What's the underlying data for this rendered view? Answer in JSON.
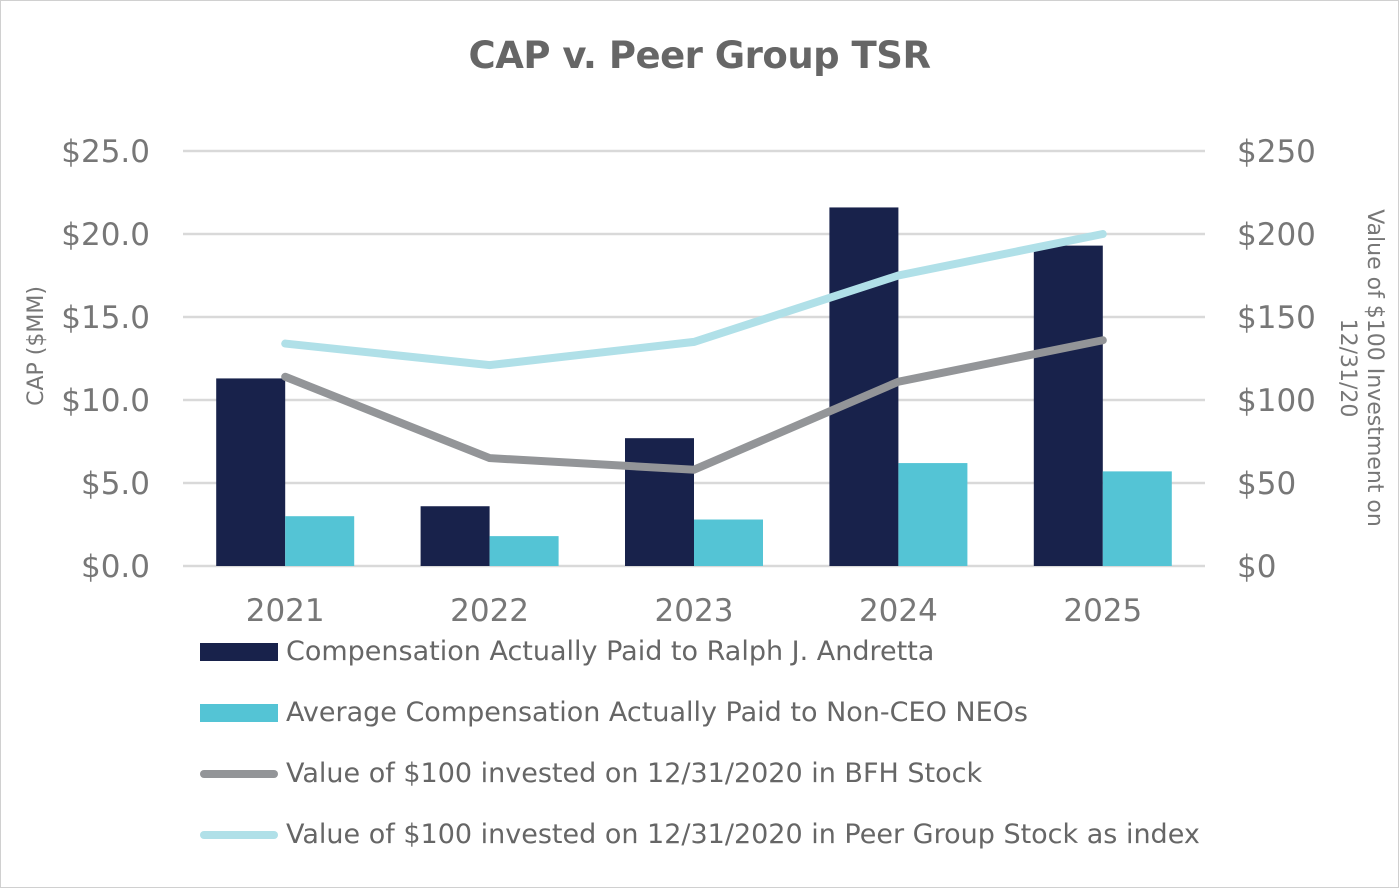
{
  "chart_data": {
    "type": "bar",
    "title": "CAP v. Peer Group TSR",
    "categories": [
      "2021",
      "2022",
      "2023",
      "2024",
      "2025"
    ],
    "ylabel": "CAP ($MM)",
    "y2label": "Value of $100 Investment on 12/31/20",
    "ylim": [
      0,
      25
    ],
    "y2lim": [
      0,
      250
    ],
    "yticks": [
      "$0.0",
      "$5.0",
      "$10.0",
      "$15.0",
      "$20.0",
      "$25.0"
    ],
    "y2ticks": [
      "$0",
      "$50",
      "$100",
      "$150",
      "$200",
      "$250"
    ],
    "grid": true,
    "legend_position": "bottom",
    "series": [
      {
        "name": "Compensation Actually Paid to Ralph J. Andretta",
        "type": "bar",
        "axis": "left",
        "color": "#18224b",
        "values": [
          11.3,
          3.6,
          7.7,
          21.6,
          19.3
        ]
      },
      {
        "name": "Average Compensation Actually Paid to Non-CEO NEOs",
        "type": "bar",
        "axis": "left",
        "color": "#54c4d5",
        "values": [
          3.0,
          1.8,
          2.8,
          6.2,
          5.7
        ]
      },
      {
        "name": "Value of $100 invested on 12/31/2020 in BFH Stock",
        "type": "line",
        "axis": "right",
        "color": "#939598",
        "values": [
          114,
          65,
          58,
          111,
          136
        ]
      },
      {
        "name": "Value of $100 invested on 12/31/2020 in Peer Group Stock as index",
        "type": "line",
        "axis": "right",
        "color": "#b0e0e8",
        "values": [
          134,
          121,
          135,
          175,
          200
        ]
      }
    ]
  }
}
